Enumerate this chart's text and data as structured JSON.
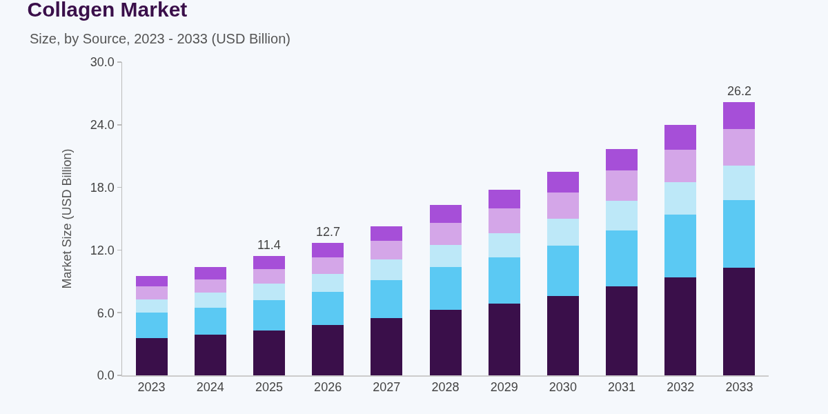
{
  "chart_data": {
    "type": "bar",
    "title": "Collagen Market",
    "subtitle": "Size, by Source, 2023 - 2033 (USD Billion)",
    "ylabel": "Market Size (USD Billion)",
    "categories": [
      "2023",
      "2024",
      "2025",
      "2026",
      "2027",
      "2028",
      "2029",
      "2030",
      "2031",
      "2032",
      "2033"
    ],
    "series": [
      {
        "color": "#3a0f4a",
        "values": [
          3.6,
          3.9,
          4.3,
          4.8,
          5.5,
          6.3,
          6.9,
          7.6,
          8.5,
          9.4,
          10.3
        ]
      },
      {
        "color": "#5bc9f3",
        "values": [
          2.4,
          2.6,
          2.9,
          3.2,
          3.6,
          4.1,
          4.4,
          4.8,
          5.4,
          6.0,
          6.5
        ]
      },
      {
        "color": "#bde8f8",
        "values": [
          1.3,
          1.4,
          1.6,
          1.7,
          2.0,
          2.1,
          2.3,
          2.6,
          2.8,
          3.1,
          3.3
        ]
      },
      {
        "color": "#d4a6e8",
        "values": [
          1.2,
          1.3,
          1.4,
          1.6,
          1.8,
          2.1,
          2.4,
          2.5,
          2.9,
          3.1,
          3.5
        ]
      },
      {
        "color": "#a64fd8",
        "values": [
          1.0,
          1.2,
          1.2,
          1.4,
          1.4,
          1.7,
          1.8,
          2.0,
          2.1,
          2.4,
          2.6
        ]
      }
    ],
    "stacked": true,
    "ylim": [
      0,
      30
    ],
    "yticks": [
      {
        "value": 0,
        "label": "0.0"
      },
      {
        "value": 6,
        "label": "6.0"
      },
      {
        "value": 12,
        "label": "12.0"
      },
      {
        "value": 18,
        "label": "18.0"
      },
      {
        "value": 24,
        "label": "24.0"
      },
      {
        "value": 30,
        "label": "30.0"
      }
    ],
    "totals": [
      null,
      null,
      "11.4",
      "12.7",
      null,
      null,
      null,
      null,
      null,
      null,
      "26.2"
    ],
    "grid": false,
    "legend": false
  }
}
